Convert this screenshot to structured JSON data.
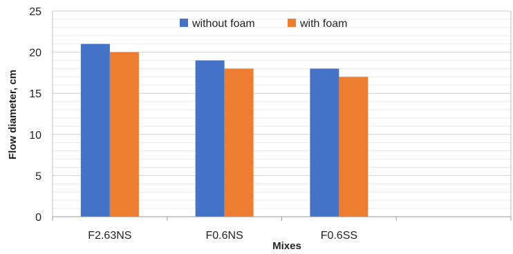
{
  "chart_data": {
    "type": "bar",
    "title": "",
    "xlabel": "Mixes",
    "ylabel": "Flow diameter, cm",
    "categories": [
      "F2.63NS",
      "F0.6NS",
      "F0.6SS",
      ""
    ],
    "series": [
      {
        "name": "without foam",
        "color": "#4472C4",
        "values": [
          21,
          19,
          18,
          null
        ]
      },
      {
        "name": "with foam",
        "color": "#ED7D31",
        "values": [
          20,
          18,
          17,
          null
        ]
      }
    ],
    "ylim": [
      0,
      25
    ],
    "yticks": [
      0,
      5,
      10,
      15,
      20,
      25
    ],
    "grid": "horizontal major and minor",
    "legend_position": "top-center"
  }
}
